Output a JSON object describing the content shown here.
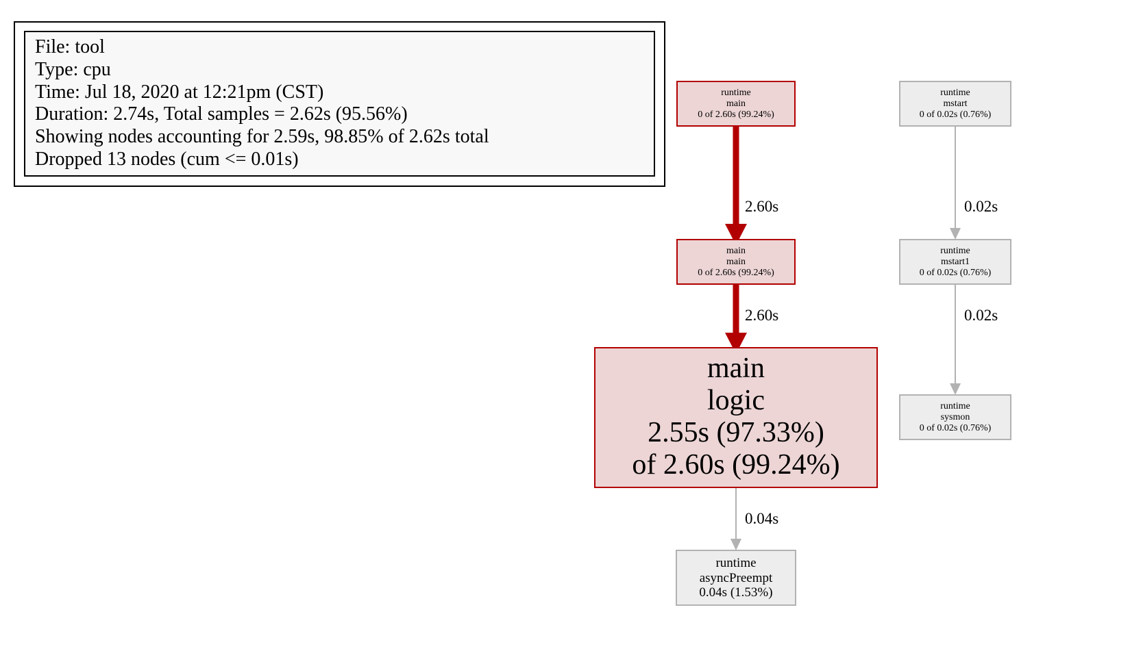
{
  "legend": {
    "lines": [
      "File: tool",
      "Type: cpu",
      "Time: Jul 18, 2020 at 12:21pm (CST)",
      "Duration: 2.74s, Total samples = 2.62s (95.56%)",
      "Showing nodes accounting for 2.59s, 98.85% of 2.62s total",
      "Dropped 13 nodes (cum <= 0.01s)"
    ]
  },
  "colors": {
    "hot_fill": "#edd5d5",
    "hot_stroke": "#b20000",
    "hot_edge": "#b20000",
    "cold_fill": "#ededed",
    "cold_stroke": "#b2b2b2",
    "cold_edge": "#b2b2b2",
    "legend_fill": "#f8f8f8"
  },
  "nodes": {
    "runtime_main": {
      "package": "runtime",
      "function": "main",
      "stats": "0 of 2.60s (99.24%)"
    },
    "main_main": {
      "package": "main",
      "function": "main",
      "stats": "0 of 2.60s (99.24%)"
    },
    "main_logic": {
      "package": "main",
      "function": "logic",
      "flat": "2.55s (97.33%)",
      "cum": "of 2.60s (99.24%)"
    },
    "runtime_asyncpreempt": {
      "package": "runtime",
      "function": "asyncPreempt",
      "stats": "0.04s (1.53%)"
    },
    "runtime_mstart": {
      "package": "runtime",
      "function": "mstart",
      "stats": "0 of 0.02s (0.76%)"
    },
    "runtime_mstart1": {
      "package": "runtime",
      "function": "mstart1",
      "stats": "0 of 0.02s (0.76%)"
    },
    "runtime_sysmon": {
      "package": "runtime",
      "function": "sysmon",
      "stats": "0 of 0.02s (0.76%)"
    }
  },
  "edges": {
    "runtime_main_to_main_main": "2.60s",
    "main_main_to_main_logic": "2.60s",
    "main_logic_to_asyncpreempt": "0.04s",
    "mstart_to_mstart1": "0.02s",
    "mstart1_to_sysmon": "0.02s"
  }
}
